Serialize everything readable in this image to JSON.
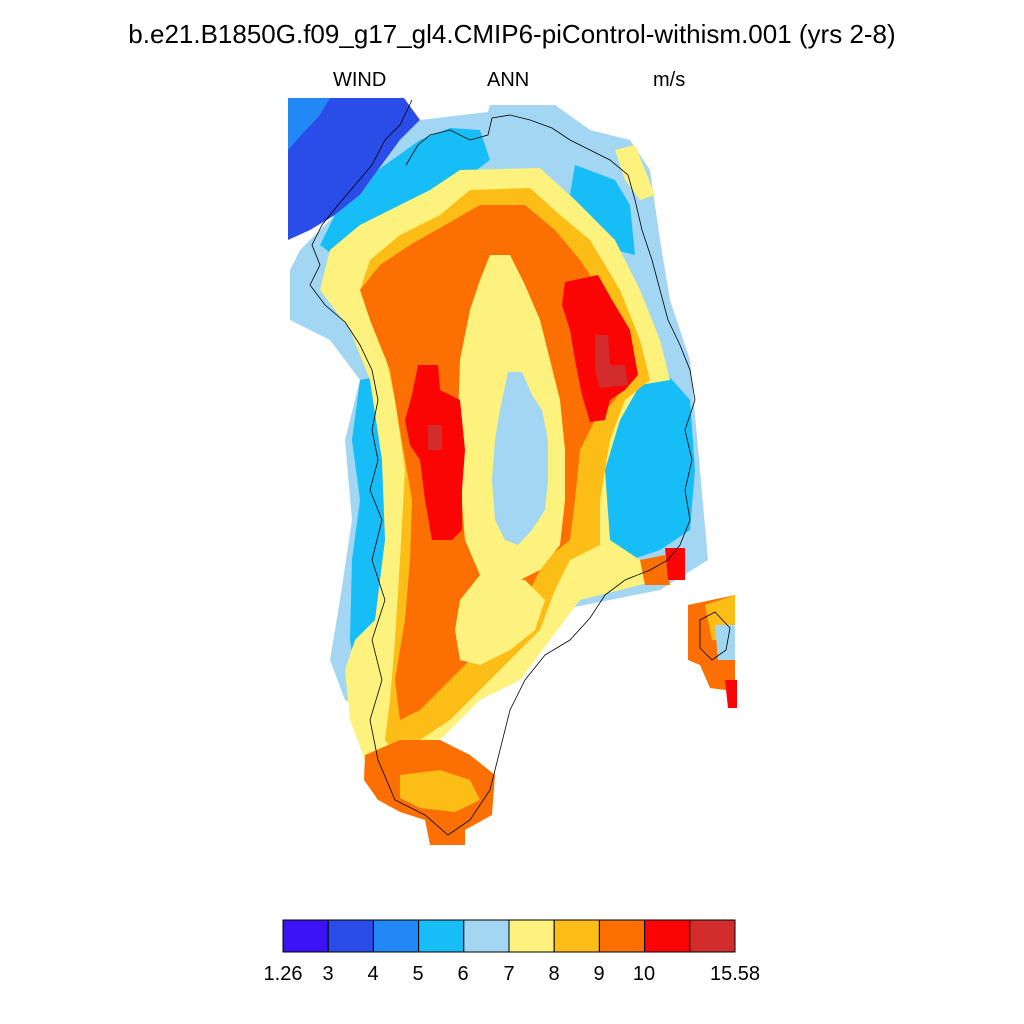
{
  "title": "b.e21.B1850G.f09_g17_gl4.CMIP6-piControl-withism.001 (yrs 2-8)",
  "subtitle": {
    "left": "WIND",
    "center": "ANN",
    "right": "m/s"
  },
  "colorbar": {
    "colors": [
      "#3a14f5",
      "#2a4ce8",
      "#2188f6",
      "#17bdf6",
      "#a2d6f2",
      "#fdf27e",
      "#fcbd17",
      "#fc7003",
      "#fa0404",
      "#d32c2c"
    ],
    "labels": [
      "1.26",
      "3",
      "4",
      "5",
      "6",
      "7",
      "8",
      "9",
      "10",
      "15.58"
    ]
  },
  "map_data": {
    "variable": "WIND",
    "units": "m/s",
    "levels": [
      1.26,
      3,
      4,
      5,
      6,
      7,
      8,
      9,
      10,
      15.58
    ]
  }
}
